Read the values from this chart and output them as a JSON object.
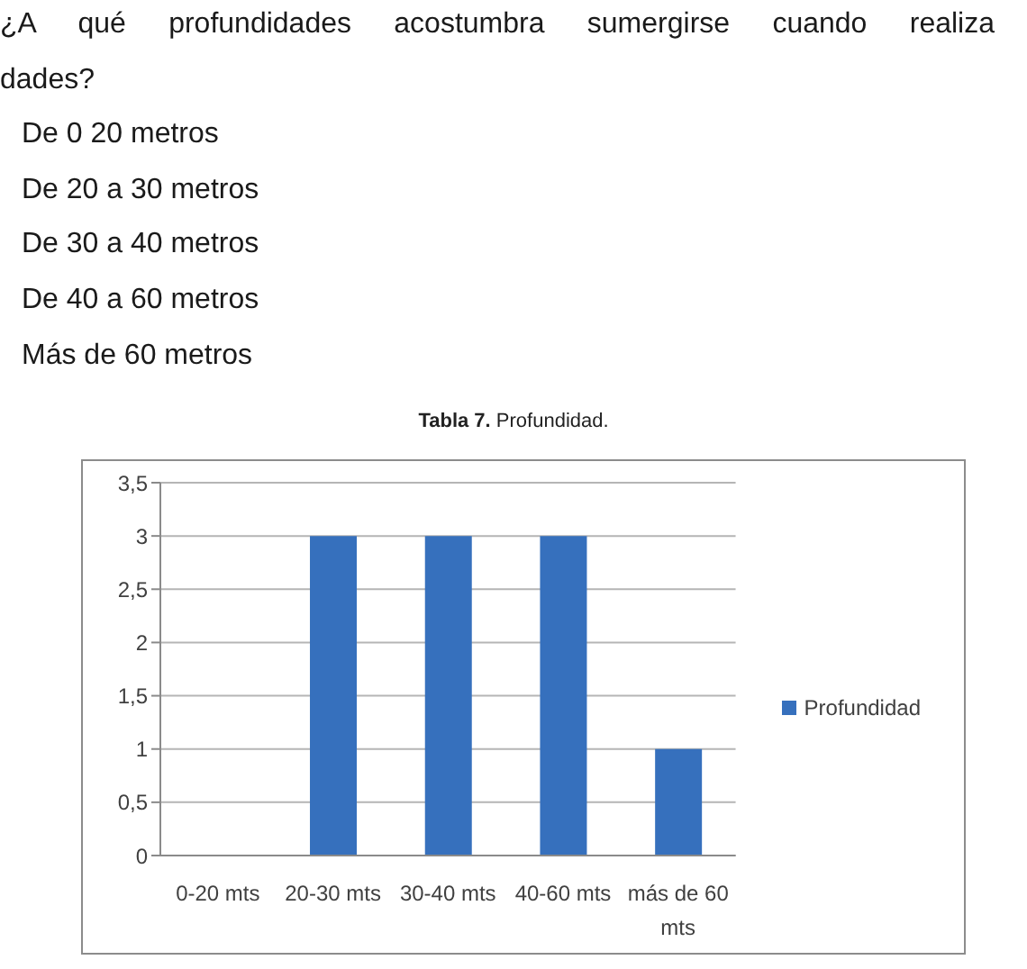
{
  "chart_data": {
    "type": "bar",
    "title": "Tabla 7. Profundidad.",
    "annotations": [
      "¿A qué profundidades acostumbra sumergirse cuando realiza",
      "dades?",
      "De 0 20 metros",
      "De 20 a 30 metros",
      "De 30 a 40 metros",
      "De 40 a 60 metros",
      "Más de 60 metros"
    ],
    "categories": [
      "0-20 mts",
      "20-30 mts",
      "30-40 mts",
      "40-60 mts",
      "más de 60 mts"
    ],
    "series": [
      {
        "name": "Profundidad",
        "color": "#3670bd",
        "values": [
          0,
          3,
          3,
          3,
          1
        ]
      }
    ],
    "ylim": [
      0,
      3.5
    ],
    "yticks": [
      0,
      {
        "value": 0.5,
        "label": "0,5"
      },
      1,
      {
        "value": 1.5,
        "label": "1,5"
      },
      2,
      {
        "value": 2.5,
        "label": "2,5"
      },
      3,
      {
        "value": 3.5,
        "label": "3,5"
      }
    ],
    "grid": "y",
    "legend": "right"
  }
}
